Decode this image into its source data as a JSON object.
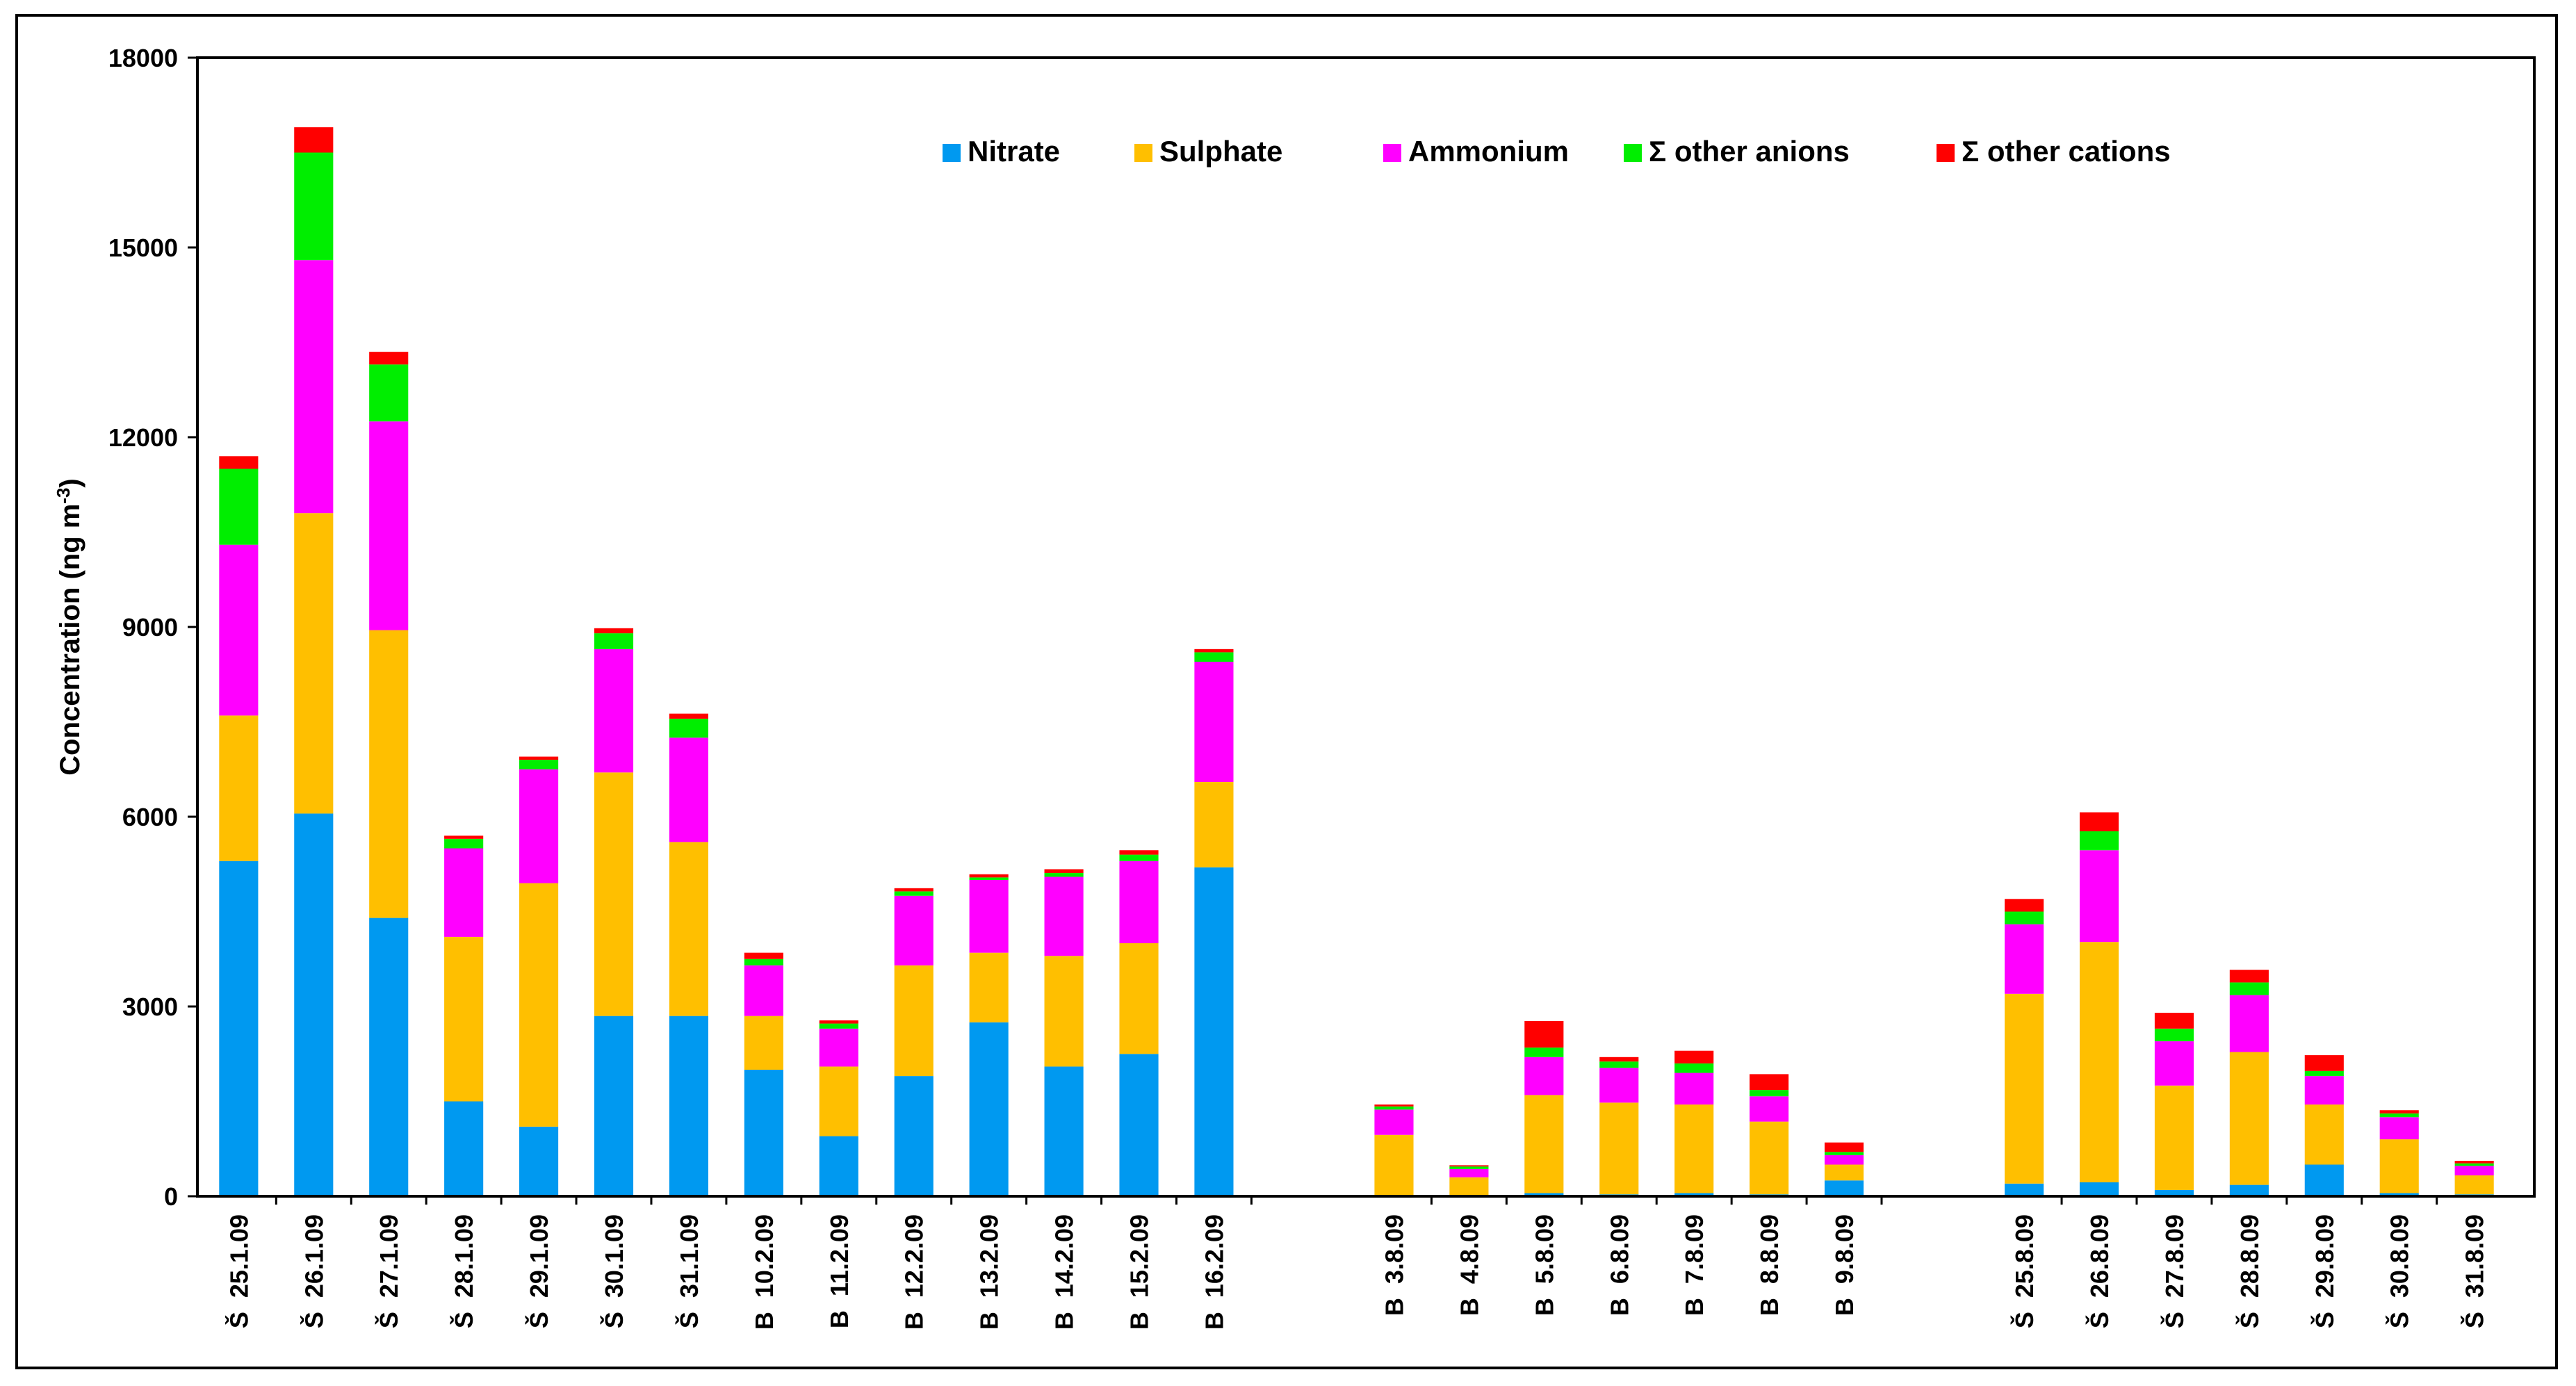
{
  "chart_data": {
    "type": "bar",
    "stacked": true,
    "title": "",
    "xlabel": "",
    "ylabel": "Concentration (ng m",
    "ylabel_superscript": "-3",
    "ylabel_suffix": ")",
    "ylim": [
      0,
      18000
    ],
    "yticks": [
      0,
      3000,
      6000,
      9000,
      12000,
      15000,
      18000
    ],
    "legend_position": "top",
    "categories": [
      "Š  25.1.09",
      "Š  26.1.09",
      "Š  27.1.09",
      "Š  28.1.09",
      "Š  29.1.09",
      "Š  30.1.09",
      "Š  31.1.09",
      "B  10.2.09",
      "B  11.2.09",
      "B  12.2.09",
      "B  13.2.09",
      "B  14.2.09",
      "B  15.2.09",
      "B  16.2.09",
      "B  3.8.09",
      "B  4.8.09",
      "B  5.8.09",
      "B  6.8.09",
      "B  7.8.09",
      "B  8.8.09",
      "B  9.8.09",
      "Š  25.8.09",
      "Š  26.8.09",
      "Š  27.8.09",
      "Š  28.8.09",
      "Š  29.8.09",
      "Š  30.8.09",
      "Š  31.8.09"
    ],
    "groups": [
      14,
      7,
      7
    ],
    "series": [
      {
        "name": "Nitrate",
        "color": "#0099f0",
        "values": [
          5300,
          6050,
          4400,
          1500,
          1100,
          2850,
          2850,
          2000,
          950,
          1900,
          2750,
          2050,
          2250,
          5200,
          20,
          20,
          50,
          30,
          50,
          30,
          250,
          200,
          220,
          100,
          180,
          500,
          50,
          30
        ]
      },
      {
        "name": "Sulphate",
        "color": "#ffbf00",
        "values": [
          2300,
          4750,
          4550,
          2600,
          3850,
          3850,
          2750,
          850,
          1100,
          1750,
          1100,
          1750,
          1750,
          1350,
          950,
          280,
          1550,
          1450,
          1400,
          1150,
          250,
          3000,
          3800,
          1650,
          2100,
          950,
          850,
          300
        ]
      },
      {
        "name": "Ammonium",
        "color": "#ff00ff",
        "values": [
          2700,
          4000,
          3300,
          1400,
          1800,
          1950,
          1650,
          800,
          600,
          1100,
          1150,
          1250,
          1300,
          1900,
          400,
          130,
          600,
          550,
          500,
          400,
          150,
          1100,
          1450,
          700,
          900,
          450,
          350,
          150
        ]
      },
      {
        "name": "Σ other anions",
        "color": "#00ee00",
        "values": [
          1200,
          1700,
          900,
          150,
          150,
          250,
          300,
          100,
          80,
          70,
          40,
          60,
          100,
          150,
          50,
          40,
          150,
          100,
          150,
          100,
          50,
          200,
          300,
          200,
          200,
          80,
          60,
          40
        ]
      },
      {
        "name": "Σ other cations",
        "color": "#ff0000",
        "values": [
          200,
          400,
          200,
          50,
          50,
          80,
          80,
          100,
          50,
          50,
          50,
          60,
          70,
          50,
          30,
          20,
          420,
          70,
          200,
          250,
          150,
          200,
          300,
          250,
          200,
          250,
          50,
          40
        ]
      }
    ]
  }
}
